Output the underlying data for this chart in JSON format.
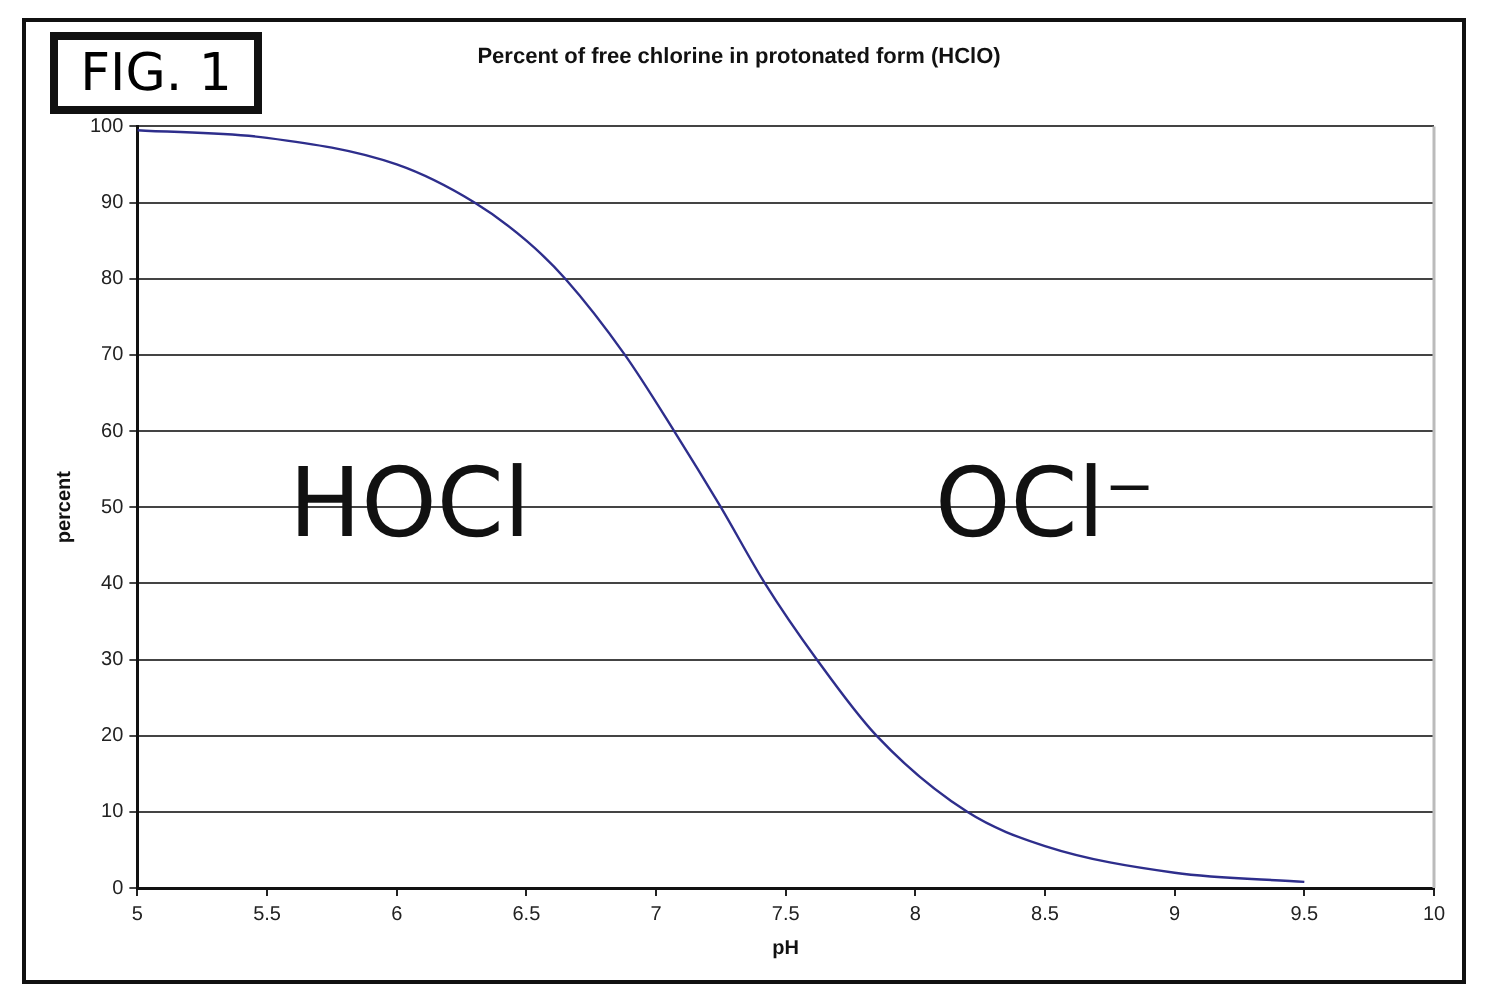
{
  "chart_data": {
    "type": "line",
    "title": "Percent of free chlorine in protonated form (HClO)",
    "xlabel": "pH",
    "ylabel": "percent",
    "annotations": [
      "FIG. 1",
      "HOCl",
      "OCl⁻"
    ],
    "x": [
      5,
      5.5,
      6,
      6.3,
      6.5,
      6.65,
      6.88,
      7.07,
      7.25,
      7.42,
      7.62,
      7.85,
      8.2,
      8.5,
      9,
      9.5
    ],
    "series": [
      {
        "color": "#2e2e8c",
        "values": [
          99.5,
          98.5,
          95,
          90,
          85,
          80,
          70,
          60,
          50,
          40,
          30,
          20,
          10,
          5.5,
          2,
          0.8
        ]
      }
    ],
    "xlim": [
      5,
      10
    ],
    "xticks": [
      5,
      5.5,
      6,
      6.5,
      7,
      7.5,
      8,
      8.5,
      9,
      9.5,
      10
    ],
    "ylim": [
      0,
      100
    ],
    "yticks": [
      0,
      10,
      20,
      30,
      40,
      50,
      60,
      70,
      80,
      90,
      100
    ],
    "grid": "y",
    "legend": false,
    "marker": "none",
    "line_style": "solid"
  }
}
